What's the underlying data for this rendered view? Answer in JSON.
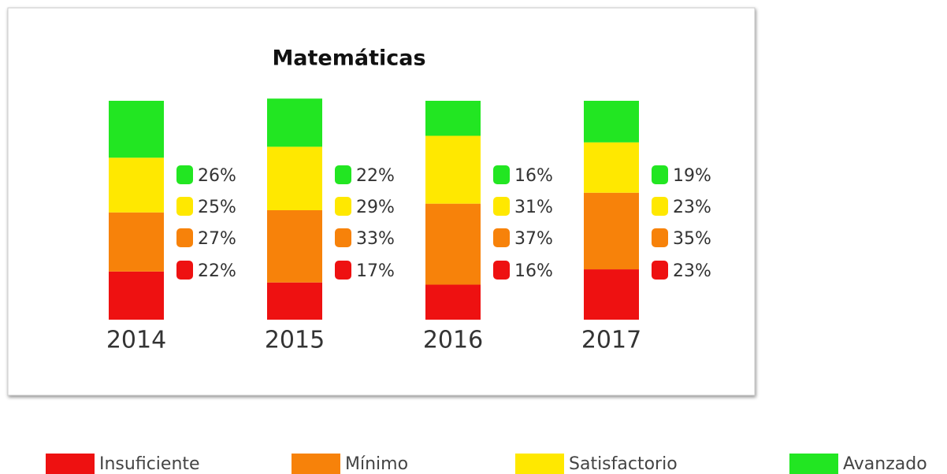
{
  "chart_data": {
    "type": "stacked_bar",
    "title": "Matemáticas",
    "categories": [
      "2014",
      "2015",
      "2016",
      "2017"
    ],
    "series": [
      {
        "name": "Insuficiente",
        "color": "#ee1111",
        "values": [
          22,
          17,
          16,
          23
        ],
        "value_labels": [
          "22%",
          "17%",
          "16%",
          "23%"
        ]
      },
      {
        "name": "Mínimo",
        "color": "#f7820a",
        "values": [
          27,
          33,
          37,
          35
        ],
        "value_labels": [
          "27%",
          "33%",
          "37%",
          "35%"
        ]
      },
      {
        "name": "Satisfactorio",
        "color": "#ffe800",
        "values": [
          25,
          29,
          31,
          23
        ],
        "value_labels": [
          "25%",
          "29%",
          "31%",
          "23%"
        ]
      },
      {
        "name": "Avanzado",
        "color": "#22e622",
        "values": [
          26,
          22,
          16,
          19
        ],
        "value_labels": [
          "26%",
          "22%",
          "16%",
          "19%"
        ]
      }
    ]
  }
}
